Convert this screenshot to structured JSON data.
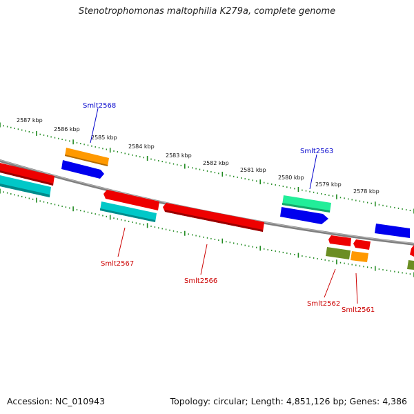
{
  "title": "Stenotrophomonas maltophilia K279a, complete genome",
  "footer": {
    "accession": "Accession: NC_010943",
    "topology": "Topology: circular; Length: 4,851,126 bp; Genes: 4,386"
  },
  "scale_labels": [
    "2587 kbp",
    "2586 kbp",
    "2585 kbp",
    "2584 kbp",
    "2583 kbp",
    "2582 kbp",
    "2581 kbp",
    "2580 kbp",
    "2579 kbp",
    "2578 kbp"
  ],
  "gene_labels": [
    {
      "text": "Smlt2568",
      "color": "#0000cc"
    },
    {
      "text": "Smlt2563",
      "color": "#0000cc"
    },
    {
      "text": "Smlt2567",
      "color": "#cc0000"
    },
    {
      "text": "Smlt2566",
      "color": "#cc0000"
    },
    {
      "text": "Smlt2562",
      "color": "#cc0000"
    },
    {
      "text": "Smlt2561",
      "color": "#cc0000"
    }
  ],
  "colors": {
    "backbone": "#808080",
    "tick": "#228b22",
    "red": "#ee0000",
    "blue": "#0000ee",
    "orange": "#ff9900",
    "cyan": "#00c8c8",
    "green": "#22ee99",
    "olive": "#6b8e23"
  }
}
